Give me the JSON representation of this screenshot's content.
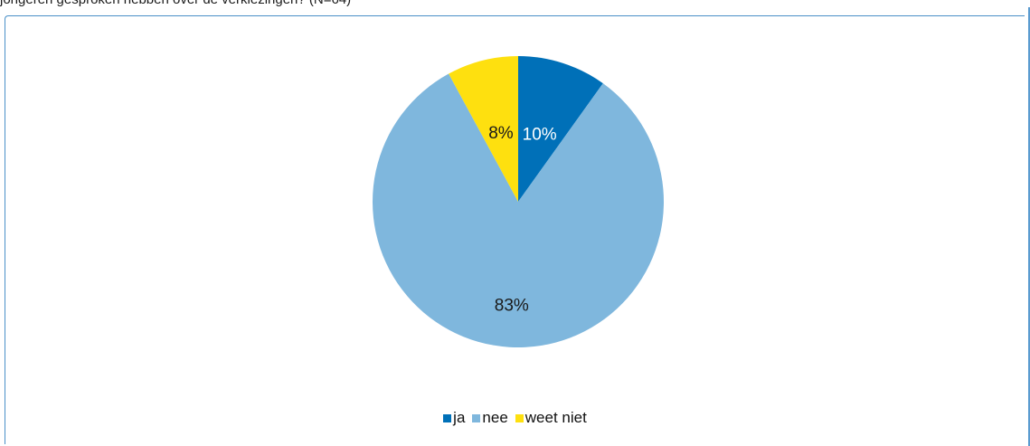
{
  "caption": "jongeren gesproken hebben over de verkiezingen? (N=64)",
  "colors": {
    "ja": "#0070b8",
    "nee": "#7fb7dd",
    "weet_niet": "#fee00f",
    "frame": "#4a90c8"
  },
  "chart_data": {
    "type": "pie",
    "categories": [
      "ja",
      "nee",
      "weet niet"
    ],
    "values": [
      10,
      83,
      8
    ],
    "labels": [
      "10%",
      "83%",
      "8%"
    ],
    "start_angle_deg": 0,
    "direction": "clockwise",
    "legend_position": "bottom"
  },
  "legend": [
    {
      "label": "ja",
      "color": "#0070b8"
    },
    {
      "label": "nee",
      "color": "#7fb7dd"
    },
    {
      "label": "weet niet",
      "color": "#fee00f"
    }
  ]
}
